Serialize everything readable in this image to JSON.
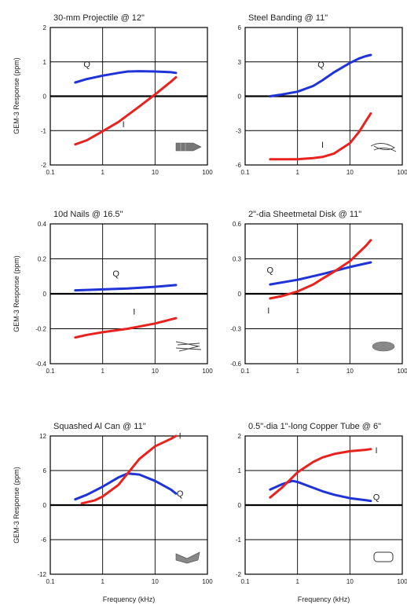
{
  "figure": {
    "ylabel_rows": [
      "GEM-3 Response (ppm)",
      "GEM-3 Response (ppm)",
      "GEM-3 Response (ppm)"
    ],
    "xlabel_bottom": [
      "Frequency (kHz)",
      "Frequency (kHz)"
    ]
  },
  "colors": {
    "I": "#e8231f",
    "Q": "#1f33d6",
    "grid": "#000000"
  },
  "chart_data": [
    {
      "type": "line",
      "title": "30-mm Projectile @ 12\"",
      "xscale": "log",
      "xlim": [
        0.1,
        100
      ],
      "xticks": [
        "0.1",
        "1",
        "10",
        "100"
      ],
      "ylim": [
        -2,
        2
      ],
      "yticks": [
        "-2",
        "-1",
        "0",
        "1",
        "2"
      ],
      "grid": true,
      "icon": "projectile-icon",
      "series": [
        {
          "name": "Q",
          "color": "#1f33d6",
          "x": [
            0.3,
            0.5,
            1,
            2,
            3,
            5,
            10,
            20,
            25
          ],
          "y": [
            0.4,
            0.5,
            0.6,
            0.68,
            0.72,
            0.73,
            0.72,
            0.7,
            0.68
          ]
        },
        {
          "name": "I",
          "color": "#e8231f",
          "x": [
            0.3,
            0.5,
            1,
            2,
            3,
            5,
            10,
            20,
            25
          ],
          "y": [
            -1.4,
            -1.28,
            -1.02,
            -0.75,
            -0.55,
            -0.3,
            0.05,
            0.42,
            0.55
          ]
        }
      ],
      "labels": [
        {
          "text": "Q",
          "x": 0.5,
          "y": 0.85
        },
        {
          "text": "I",
          "x": 2.5,
          "y": -0.9
        }
      ]
    },
    {
      "type": "line",
      "title": "Steel Banding @ 11\"",
      "xscale": "log",
      "xlim": [
        0.1,
        100
      ],
      "xticks": [
        "0.1",
        "1",
        "10",
        "100"
      ],
      "ylim": [
        -6,
        6
      ],
      "yticks": [
        "-6",
        "-3",
        "0",
        "3",
        "6"
      ],
      "grid": true,
      "icon": "steel-band-icon",
      "series": [
        {
          "name": "Q",
          "color": "#1f33d6",
          "x": [
            0.3,
            0.5,
            1,
            2,
            3,
            5,
            10,
            15,
            20,
            25
          ],
          "y": [
            0.0,
            0.15,
            0.4,
            0.9,
            1.4,
            2.1,
            2.9,
            3.3,
            3.5,
            3.6
          ]
        },
        {
          "name": "I",
          "color": "#e8231f",
          "x": [
            0.3,
            0.5,
            1,
            2,
            3,
            5,
            10,
            15,
            20,
            25
          ],
          "y": [
            -5.5,
            -5.5,
            -5.5,
            -5.4,
            -5.3,
            -5.0,
            -4.1,
            -3.1,
            -2.2,
            -1.5
          ]
        }
      ],
      "labels": [
        {
          "text": "Q",
          "x": 2.8,
          "y": 2.5
        },
        {
          "text": "I",
          "x": 3,
          "y": -4.5
        }
      ]
    },
    {
      "type": "line",
      "title": "10d Nails @ 16.5\"",
      "xscale": "log",
      "xlim": [
        0.1,
        100
      ],
      "xticks": [
        "0.1",
        "1",
        "10",
        "100"
      ],
      "ylim": [
        -0.4,
        0.4
      ],
      "yticks": [
        "-0.4",
        "-0.2",
        "0",
        "0.2",
        "0.4"
      ],
      "grid": true,
      "icon": "nails-icon",
      "series": [
        {
          "name": "Q",
          "color": "#1f33d6",
          "x": [
            0.3,
            1,
            3,
            10,
            25
          ],
          "y": [
            0.02,
            0.025,
            0.03,
            0.04,
            0.05
          ]
        },
        {
          "name": "I",
          "color": "#e8231f",
          "x": [
            0.3,
            0.5,
            1,
            3,
            10,
            25
          ],
          "y": [
            -0.25,
            -0.235,
            -0.22,
            -0.2,
            -0.17,
            -0.14
          ]
        }
      ],
      "labels": [
        {
          "text": "Q",
          "x": 1.8,
          "y": 0.1
        },
        {
          "text": "I",
          "x": 4,
          "y": -0.12
        }
      ]
    },
    {
      "type": "line",
      "title": "2\"-dia Sheetmetal Disk @ 11\"",
      "xscale": "log",
      "xlim": [
        0.1,
        100
      ],
      "xticks": [
        "0.1",
        "1",
        "10",
        "100"
      ],
      "ylim": [
        -0.6,
        0.6
      ],
      "yticks": [
        "-0.6",
        "-0.3",
        "0",
        "0.3",
        "0.6"
      ],
      "grid": true,
      "icon": "disk-icon",
      "series": [
        {
          "name": "Q",
          "color": "#1f33d6",
          "x": [
            0.3,
            1,
            3,
            10,
            25
          ],
          "y": [
            0.08,
            0.12,
            0.17,
            0.23,
            0.27
          ]
        },
        {
          "name": "I",
          "color": "#e8231f",
          "x": [
            0.3,
            0.5,
            1,
            2,
            3,
            5,
            10,
            20,
            25
          ],
          "y": [
            -0.04,
            -0.02,
            0.02,
            0.08,
            0.13,
            0.19,
            0.28,
            0.41,
            0.46
          ]
        }
      ],
      "labels": [
        {
          "text": "Q",
          "x": 0.3,
          "y": 0.18
        },
        {
          "text": "I",
          "x": 0.28,
          "y": -0.17
        }
      ]
    },
    {
      "type": "line",
      "title": "Squashed Al Can @ 11\"",
      "xscale": "log",
      "xlim": [
        0.1,
        100
      ],
      "xticks": [
        "0.1",
        "1",
        "10",
        "100"
      ],
      "ylim": [
        -12,
        12
      ],
      "yticks": [
        "-12",
        "-6",
        "0",
        "6",
        "12"
      ],
      "grid": true,
      "icon": "squashed-can-icon",
      "series": [
        {
          "name": "Q",
          "color": "#1f33d6",
          "x": [
            0.3,
            0.5,
            1,
            2,
            3,
            5,
            10,
            20,
            25
          ],
          "y": [
            1.0,
            1.8,
            3.2,
            4.8,
            5.5,
            5.3,
            4.2,
            2.7,
            2.0
          ]
        },
        {
          "name": "I",
          "color": "#e8231f",
          "x": [
            0.4,
            0.7,
            1,
            2,
            3,
            5,
            10,
            20,
            25
          ],
          "y": [
            0.3,
            0.8,
            1.5,
            3.5,
            5.5,
            8.0,
            10.2,
            11.5,
            12.0
          ]
        }
      ],
      "labels": [
        {
          "text": "I",
          "x": 30,
          "y": 11.5
        },
        {
          "text": "Q",
          "x": 30,
          "y": 1.5
        }
      ]
    },
    {
      "type": "line",
      "title": "0.5\"-dia 1\"-long Copper Tube @ 6\"",
      "xscale": "log",
      "xlim": [
        0.1,
        100
      ],
      "xticks": [
        "0.1",
        "1",
        "10",
        "100"
      ],
      "ylim": [
        -2,
        2
      ],
      "yticks": [
        "-2",
        "-1",
        "0",
        "1",
        "2"
      ],
      "grid": true,
      "icon": "copper-tube-icon",
      "series": [
        {
          "name": "Q",
          "color": "#1f33d6",
          "x": [
            0.3,
            0.5,
            0.8,
            1,
            2,
            3,
            5,
            10,
            20,
            25
          ],
          "y": [
            0.45,
            0.6,
            0.7,
            0.67,
            0.5,
            0.4,
            0.3,
            0.2,
            0.14,
            0.12
          ]
        },
        {
          "name": "I",
          "color": "#e8231f",
          "x": [
            0.3,
            0.5,
            0.8,
            1,
            2,
            3,
            5,
            10,
            20,
            25
          ],
          "y": [
            0.22,
            0.5,
            0.8,
            0.95,
            1.25,
            1.38,
            1.48,
            1.56,
            1.6,
            1.62
          ]
        }
      ],
      "labels": [
        {
          "text": "I",
          "x": 32,
          "y": 1.5
        },
        {
          "text": "Q",
          "x": 32,
          "y": 0.15
        }
      ]
    }
  ]
}
